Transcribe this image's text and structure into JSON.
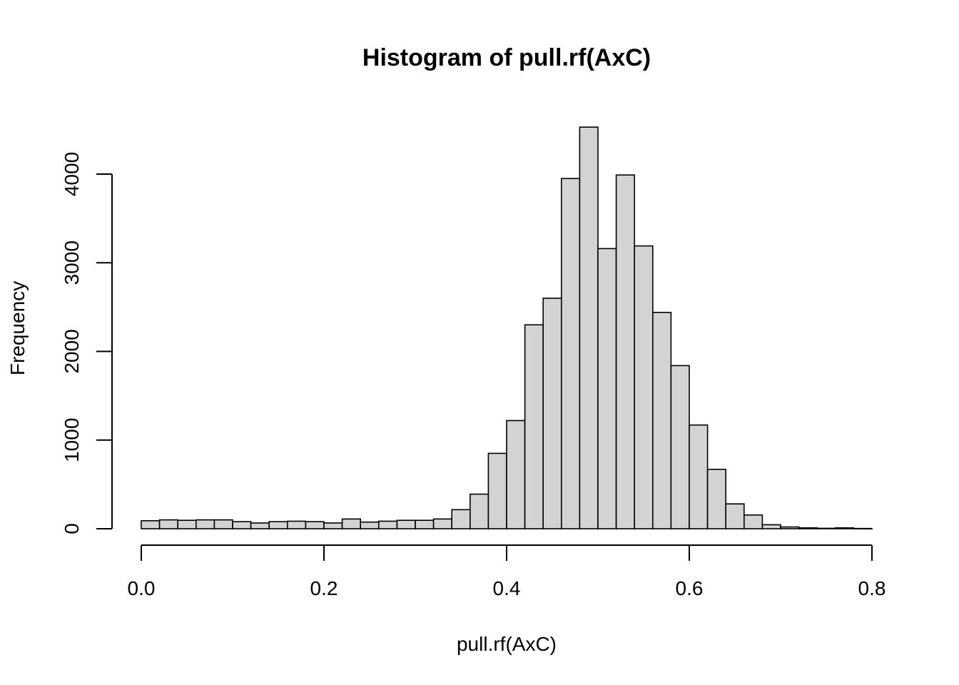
{
  "chart_data": {
    "type": "bar",
    "title": "Histogram of pull.rf(AxC)",
    "xlabel": "pull.rf(AxC)",
    "ylabel": "Frequency",
    "bin_width": 0.02,
    "xlim": [
      0,
      0.8
    ],
    "ylim": [
      0,
      4500
    ],
    "x_ticks": [
      0.0,
      0.2,
      0.4,
      0.6,
      0.8
    ],
    "x_tick_labels": [
      "0.0",
      "0.2",
      "0.4",
      "0.6",
      "0.8"
    ],
    "y_ticks": [
      0,
      1000,
      2000,
      3000,
      4000
    ],
    "y_tick_labels": [
      "0",
      "1000",
      "2000",
      "3000",
      "4000"
    ],
    "bin_starts": [
      0.0,
      0.02,
      0.04,
      0.06,
      0.08,
      0.1,
      0.12,
      0.14,
      0.16,
      0.18,
      0.2,
      0.22,
      0.24,
      0.26,
      0.28,
      0.3,
      0.32,
      0.34,
      0.36,
      0.38,
      0.4,
      0.42,
      0.44,
      0.46,
      0.48,
      0.5,
      0.52,
      0.54,
      0.56,
      0.58,
      0.6,
      0.62,
      0.64,
      0.66,
      0.68,
      0.7,
      0.72,
      0.74,
      0.76,
      0.78
    ],
    "values": [
      90,
      100,
      95,
      100,
      100,
      80,
      65,
      80,
      85,
      80,
      65,
      110,
      75,
      85,
      95,
      95,
      110,
      215,
      390,
      850,
      1220,
      2300,
      2600,
      3950,
      4530,
      3160,
      3990,
      3190,
      2440,
      1840,
      1170,
      670,
      280,
      155,
      45,
      20,
      10,
      5,
      10,
      3
    ],
    "grid": false,
    "legend": "none"
  }
}
